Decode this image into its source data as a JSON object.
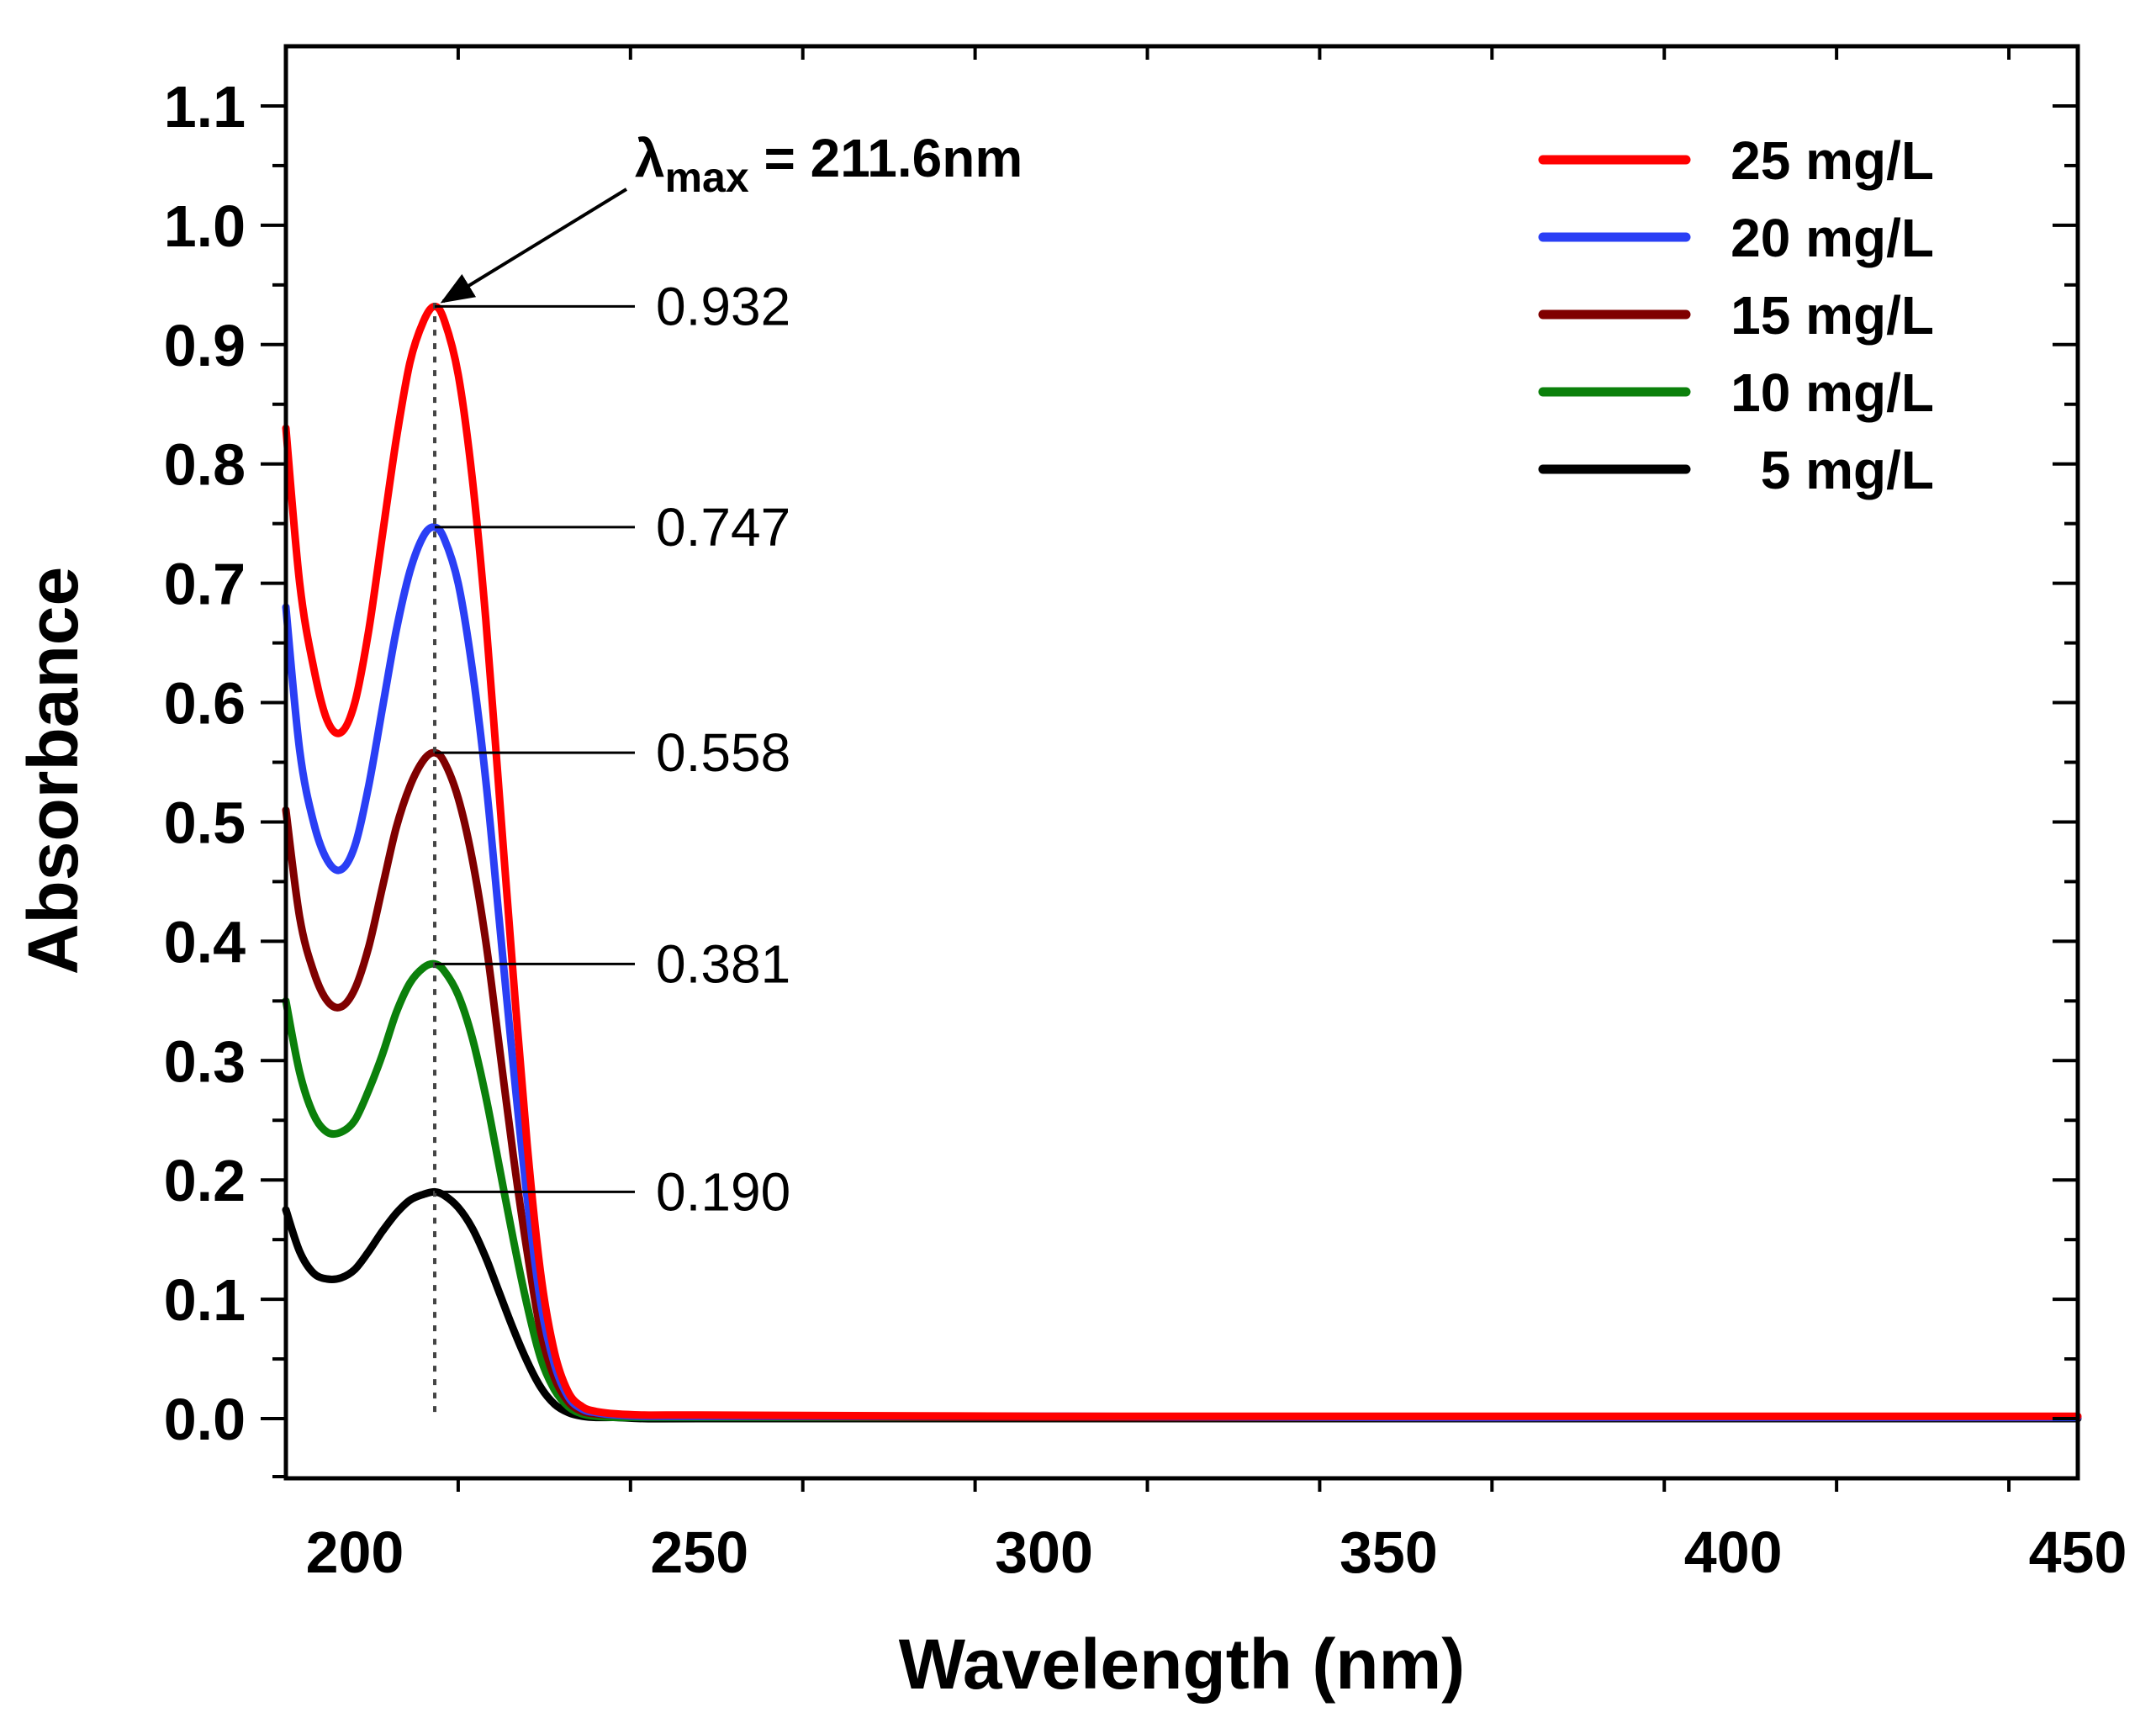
{
  "chart_data": {
    "type": "line",
    "title": "",
    "xlabel": "Wavelength (nm)",
    "ylabel": "Absorbance",
    "xlim": [
      190,
      450
    ],
    "ylim": [
      -0.05,
      1.15
    ],
    "xticks": [
      200,
      250,
      300,
      350,
      400,
      450
    ],
    "xtick_labels": [
      "200",
      "250",
      "300",
      "350",
      "400",
      "450"
    ],
    "yticks": [
      0.0,
      0.1,
      0.2,
      0.3,
      0.4,
      0.5,
      0.6,
      0.7,
      0.8,
      0.9,
      1.0,
      1.1
    ],
    "ytick_labels": [
      "0.0",
      "0.1",
      "0.2",
      "0.3",
      "0.4",
      "0.5",
      "0.6",
      "0.7",
      "0.8",
      "0.9",
      "1.0",
      "1.1"
    ],
    "grid": false,
    "legend_position": "top-right",
    "lambda_max": {
      "symbol": "λ",
      "subscript": "max",
      "text": " = 211.6nm",
      "wavelength": 211.6
    },
    "series": [
      {
        "name": "25 mg/L",
        "color": "#ff0000",
        "peak": 0.932,
        "peak_label": "0.932",
        "x": [
          190,
          192,
          194,
          196,
          198,
          200,
          202,
          204,
          206,
          208,
          210,
          211.6,
          213,
          215,
          217,
          219,
          221,
          223,
          225,
          227,
          229,
          231,
          233,
          235,
          238,
          242,
          250,
          300,
          350,
          400,
          450
        ],
        "y": [
          0.83,
          0.7,
          0.63,
          0.585,
          0.575,
          0.6,
          0.66,
          0.74,
          0.82,
          0.885,
          0.92,
          0.932,
          0.92,
          0.875,
          0.79,
          0.67,
          0.52,
          0.37,
          0.23,
          0.12,
          0.055,
          0.022,
          0.01,
          0.006,
          0.004,
          0.003,
          0.003,
          0.002,
          0.002,
          0.002,
          0.002
        ]
      },
      {
        "name": "20 mg/L",
        "color": "#2a3ff5",
        "peak": 0.747,
        "peak_label": "0.747",
        "x": [
          190,
          192,
          194,
          196,
          198,
          200,
          202,
          204,
          206,
          208,
          210,
          211.6,
          213,
          215,
          217,
          219,
          221,
          223,
          225,
          227,
          229,
          231,
          233,
          235,
          238,
          242,
          250,
          300,
          350,
          400,
          450
        ],
        "y": [
          0.68,
          0.56,
          0.5,
          0.468,
          0.46,
          0.48,
          0.53,
          0.595,
          0.66,
          0.71,
          0.74,
          0.747,
          0.737,
          0.7,
          0.63,
          0.535,
          0.415,
          0.295,
          0.185,
          0.096,
          0.045,
          0.018,
          0.008,
          0.005,
          0.003,
          0.002,
          0.002,
          0.002,
          0.001,
          0.001,
          0.001
        ]
      },
      {
        "name": "15 mg/L",
        "color": "#800000",
        "peak": 0.558,
        "peak_label": "0.558",
        "x": [
          190,
          192,
          194,
          196,
          198,
          200,
          202,
          204,
          206,
          208,
          210,
          211.6,
          213,
          215,
          217,
          219,
          221,
          223,
          225,
          227,
          229,
          231,
          233,
          235,
          238,
          242,
          250,
          300,
          350,
          400,
          450
        ],
        "y": [
          0.51,
          0.42,
          0.375,
          0.35,
          0.345,
          0.36,
          0.395,
          0.445,
          0.495,
          0.53,
          0.552,
          0.558,
          0.55,
          0.52,
          0.47,
          0.4,
          0.31,
          0.22,
          0.14,
          0.072,
          0.034,
          0.014,
          0.006,
          0.004,
          0.003,
          0.002,
          0.002,
          0.001,
          0.001,
          0.001,
          0.001
        ]
      },
      {
        "name": "10 mg/L",
        "color": "#0b800b",
        "peak": 0.381,
        "peak_label": "0.381",
        "x": [
          190,
          192,
          194,
          196,
          198,
          200,
          202,
          204,
          206,
          208,
          210,
          211.6,
          213,
          215,
          217,
          219,
          221,
          223,
          225,
          227,
          229,
          231,
          233,
          235,
          238,
          242,
          250,
          300,
          350,
          400,
          450
        ],
        "y": [
          0.35,
          0.29,
          0.255,
          0.24,
          0.24,
          0.25,
          0.275,
          0.305,
          0.34,
          0.365,
          0.378,
          0.381,
          0.375,
          0.355,
          0.32,
          0.27,
          0.21,
          0.15,
          0.095,
          0.05,
          0.024,
          0.01,
          0.004,
          0.002,
          0.001,
          0.001,
          0.001,
          0.001,
          0.001,
          0.001,
          0.001
        ]
      },
      {
        "name": "5 mg/L",
        "color": "#000000",
        "peak": 0.19,
        "peak_label": "0.190",
        "x": [
          190,
          192,
          194,
          196,
          198,
          200,
          202,
          204,
          206,
          208,
          210,
          211.6,
          213,
          215,
          217,
          219,
          221,
          223,
          225,
          227,
          229,
          231,
          233,
          235,
          238,
          242,
          250,
          300,
          350,
          400,
          450
        ],
        "y": [
          0.175,
          0.14,
          0.122,
          0.117,
          0.118,
          0.125,
          0.14,
          0.157,
          0.172,
          0.183,
          0.188,
          0.19,
          0.187,
          0.177,
          0.16,
          0.135,
          0.105,
          0.075,
          0.048,
          0.026,
          0.012,
          0.005,
          0.002,
          0.001,
          0.001,
          0.0,
          0.0,
          0.0,
          0.0,
          0.0,
          0.0
        ]
      }
    ]
  }
}
